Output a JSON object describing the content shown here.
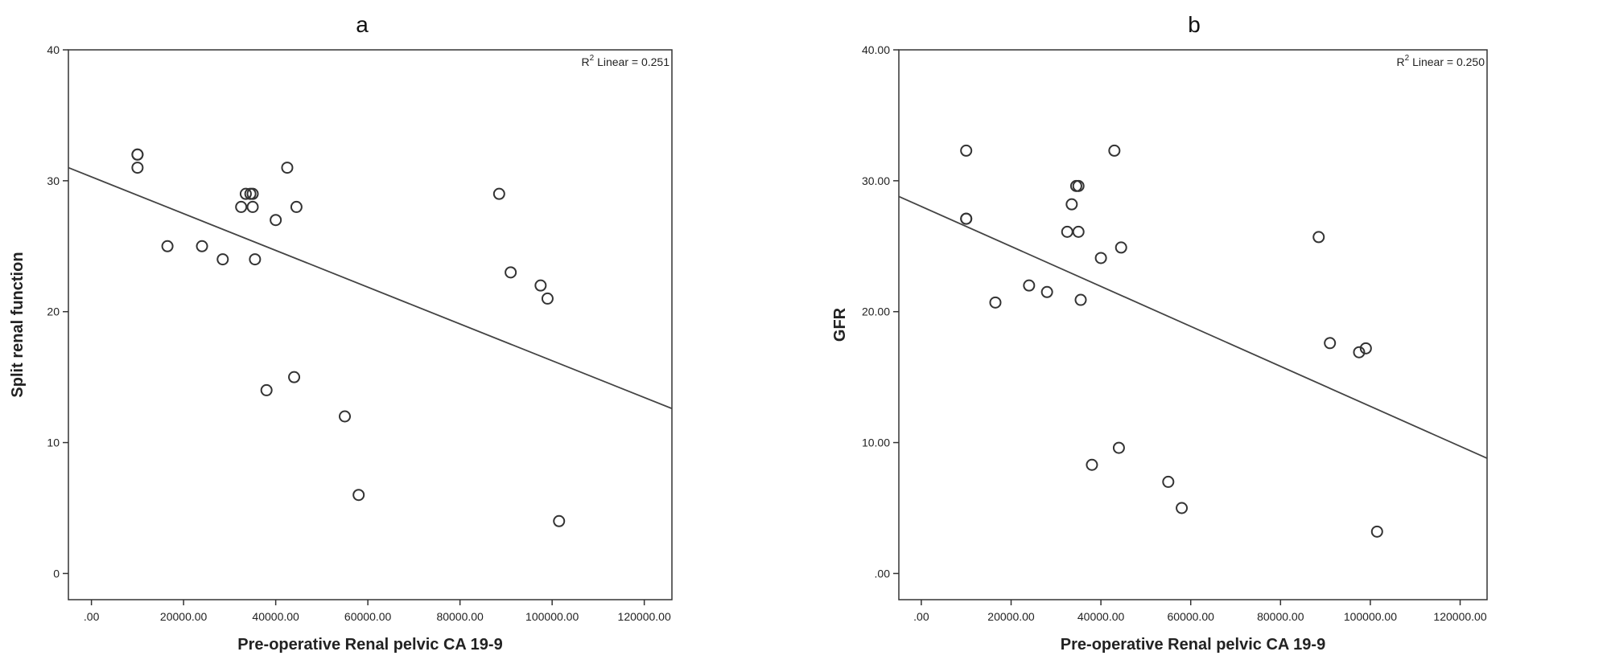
{
  "chart_data": [
    {
      "type": "scatter",
      "panel_label": "a",
      "xlabel": "Pre-operative Renal pelvic CA 19-9",
      "ylabel": "Split renal function",
      "xlim": [
        -5000,
        126000
      ],
      "ylim": [
        -2,
        40
      ],
      "x_ticks": [
        0,
        20000,
        40000,
        60000,
        80000,
        100000,
        120000
      ],
      "x_tick_labels": [
        ".00",
        "20000.00",
        "40000.00",
        "60000.00",
        "80000.00",
        "100000.00",
        "120000.00"
      ],
      "y_ticks": [
        0,
        10,
        20,
        30,
        40
      ],
      "y_tick_labels": [
        "0",
        "10",
        "20",
        "30",
        "40"
      ],
      "r2_label": "R",
      "r2_sup": "2",
      "r2_text": " Linear = 0.251",
      "fit_line": {
        "x": [
          -5000,
          126000
        ],
        "y": [
          31.0,
          12.6
        ]
      },
      "points": [
        {
          "x": 10000,
          "y": 32
        },
        {
          "x": 10000,
          "y": 32
        },
        {
          "x": 10000,
          "y": 31
        },
        {
          "x": 16500,
          "y": 25
        },
        {
          "x": 24000,
          "y": 25
        },
        {
          "x": 28500,
          "y": 24
        },
        {
          "x": 32500,
          "y": 28
        },
        {
          "x": 33500,
          "y": 29
        },
        {
          "x": 34500,
          "y": 29
        },
        {
          "x": 35000,
          "y": 29
        },
        {
          "x": 35000,
          "y": 28
        },
        {
          "x": 35500,
          "y": 24
        },
        {
          "x": 38000,
          "y": 14
        },
        {
          "x": 40000,
          "y": 27
        },
        {
          "x": 42500,
          "y": 31
        },
        {
          "x": 44000,
          "y": 15
        },
        {
          "x": 44500,
          "y": 28
        },
        {
          "x": 55000,
          "y": 12
        },
        {
          "x": 58000,
          "y": 6
        },
        {
          "x": 88500,
          "y": 29
        },
        {
          "x": 91000,
          "y": 23
        },
        {
          "x": 97500,
          "y": 22
        },
        {
          "x": 99000,
          "y": 21
        },
        {
          "x": 101500,
          "y": 4
        }
      ]
    },
    {
      "type": "scatter",
      "panel_label": "b",
      "xlabel": "Pre-operative Renal pelvic CA 19-9",
      "ylabel": "GFR",
      "xlim": [
        -5000,
        126000
      ],
      "ylim": [
        -2,
        40
      ],
      "x_ticks": [
        0,
        20000,
        40000,
        60000,
        80000,
        100000,
        120000
      ],
      "x_tick_labels": [
        ".00",
        "20000.00",
        "40000.00",
        "60000.00",
        "80000.00",
        "100000.00",
        "120000.00"
      ],
      "y_ticks": [
        0,
        10,
        20,
        30,
        40
      ],
      "y_tick_labels": [
        ".00",
        "10.00",
        "20.00",
        "30.00",
        "40.00"
      ],
      "r2_label": "R",
      "r2_sup": "2",
      "r2_text": " Linear = 0.250",
      "fit_line": {
        "x": [
          -5000,
          126000
        ],
        "y": [
          28.8,
          8.8
        ]
      },
      "points": [
        {
          "x": 10000,
          "y": 32.3
        },
        {
          "x": 10000,
          "y": 27.1
        },
        {
          "x": 10000,
          "y": 27.1
        },
        {
          "x": 16500,
          "y": 20.7
        },
        {
          "x": 24000,
          "y": 22.0
        },
        {
          "x": 28000,
          "y": 21.5
        },
        {
          "x": 32500,
          "y": 26.1
        },
        {
          "x": 33500,
          "y": 28.2
        },
        {
          "x": 34500,
          "y": 29.6
        },
        {
          "x": 35000,
          "y": 29.6
        },
        {
          "x": 35000,
          "y": 26.1
        },
        {
          "x": 35500,
          "y": 20.9
        },
        {
          "x": 38000,
          "y": 8.3
        },
        {
          "x": 40000,
          "y": 24.1
        },
        {
          "x": 43000,
          "y": 32.3
        },
        {
          "x": 44000,
          "y": 9.6
        },
        {
          "x": 44500,
          "y": 24.9
        },
        {
          "x": 55000,
          "y": 7.0
        },
        {
          "x": 58000,
          "y": 5.0
        },
        {
          "x": 88500,
          "y": 25.7
        },
        {
          "x": 91000,
          "y": 17.6
        },
        {
          "x": 97500,
          "y": 16.9
        },
        {
          "x": 99000,
          "y": 17.2
        },
        {
          "x": 101500,
          "y": 3.2
        }
      ]
    }
  ]
}
